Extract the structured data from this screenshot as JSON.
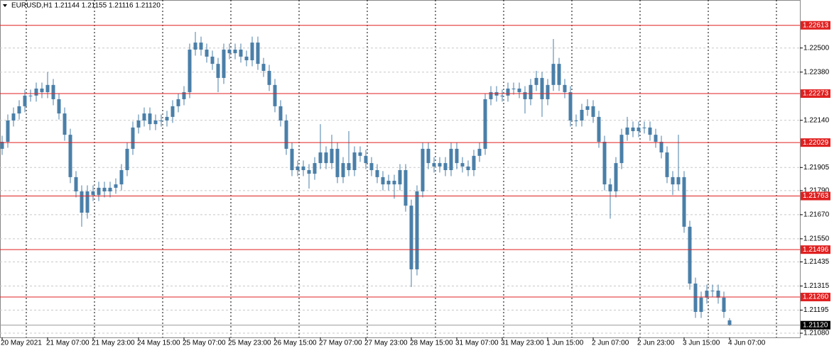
{
  "chart_data": {
    "type": "candlestick",
    "header": "EURUSD,H1  1.21144 1.21155 1.21116 1.21120",
    "color": "#4a7fa8",
    "level_color": "#e02020",
    "categories": [
      "20 May 2021",
      null,
      null,
      null,
      null,
      null,
      null,
      null,
      "21 May 07:00",
      null,
      null,
      null,
      null,
      null,
      null,
      null,
      "21 May 23:00",
      null,
      null,
      null,
      null,
      null,
      null,
      null,
      "24 May 15:00",
      null,
      null,
      null,
      null,
      null,
      null,
      null,
      "25 May 07:00",
      null,
      null,
      null,
      null,
      null,
      null,
      null,
      "25 May 23:00",
      null,
      null,
      null,
      null,
      null,
      null,
      null,
      "26 May 15:00",
      null,
      null,
      null,
      null,
      null,
      null,
      null,
      "27 May 07:00",
      null,
      null,
      null,
      null,
      null,
      null,
      null,
      "27 May 23:00",
      null,
      null,
      null,
      null,
      null,
      null,
      null,
      "28 May 15:00",
      null,
      null,
      null,
      null,
      null,
      null,
      null,
      "31 May 07:00",
      null,
      null,
      null,
      null,
      null,
      null,
      null,
      "31 May 23:00",
      null,
      null,
      null,
      null,
      null,
      null,
      null,
      "1 Jun 15:00",
      null,
      null,
      null,
      null,
      null,
      null,
      null,
      "2 Jun 07:00",
      null,
      null,
      null,
      null,
      null,
      null,
      null,
      "2 Jun 23:00",
      null,
      null,
      null,
      null,
      null,
      null,
      null,
      "3 Jun 15:00",
      null,
      null,
      null,
      null,
      null,
      null,
      null,
      "4 Jun 07:00"
    ],
    "open": [
      1.21998,
      1.22033,
      1.22139,
      1.22174,
      1.2221,
      1.22263,
      1.22263,
      1.22298,
      1.2228,
      1.22316,
      1.22245,
      1.22174,
      1.22068,
      1.21857,
      1.21786,
      1.2168,
      1.21786,
      1.21768,
      1.21804,
      1.21786,
      1.21804,
      1.21821,
      1.21892,
      1.21998,
      1.22104,
      1.22139,
      1.22174,
      1.22121,
      1.22139,
      1.22139,
      1.22157,
      1.2221,
      1.22245,
      1.2228,
      1.22492,
      1.22527,
      1.22492,
      1.22457,
      1.22421,
      1.22351,
      1.22492,
      1.22474,
      1.22492,
      1.22457,
      1.22439,
      1.22527,
      1.22421,
      1.22386,
      1.22316,
      1.2221,
      1.22139,
      1.21998,
      1.21892,
      1.2191,
      1.21892,
      1.21874,
      1.21927,
      1.2198,
      1.21927,
      1.21998,
      1.21857,
      1.21927,
      1.21892,
      1.2198,
      1.21963,
      1.21927,
      1.21892,
      1.21857,
      1.21821,
      1.21839,
      1.21821,
      1.21892,
      1.21715,
      1.21398,
      1.21786,
      1.21998,
      1.21927,
      1.2191,
      1.21927,
      1.21892,
      1.21998,
      1.21927,
      1.2191,
      1.21892,
      1.21963,
      1.21998,
      1.22245,
      1.2228,
      1.22263,
      1.22263,
      1.22298,
      1.22298,
      1.2228,
      1.22245,
      1.22316,
      1.22351,
      1.22245,
      1.22316,
      1.22421,
      1.22316,
      1.2228,
      1.22139,
      1.22139,
      1.22192,
      1.2221,
      1.22157,
      1.22033,
      1.21821,
      1.21786,
      1.21927,
      1.22068,
      1.22104,
      1.22086,
      1.22104,
      1.22104,
      1.22068,
      1.22033,
      1.2198,
      1.21857,
      1.21821,
      1.21857,
      1.2161,
      1.21327,
      1.21186,
      1.21257,
      1.21292,
      1.21292,
      1.21257,
      1.21144
    ],
    "high": [
      1.22063,
      1.22169,
      1.22204,
      1.2224,
      1.22293,
      1.22293,
      1.22328,
      1.22328,
      1.2238,
      1.22346,
      1.22275,
      1.22204,
      1.22098,
      1.21887,
      1.21816,
      1.21816,
      1.21816,
      1.21834,
      1.21834,
      1.21834,
      1.21851,
      1.21922,
      1.22028,
      1.22134,
      1.22169,
      1.22204,
      1.22204,
      1.22169,
      1.22169,
      1.22187,
      1.2224,
      1.22275,
      1.2231,
      1.22522,
      1.2258,
      1.22557,
      1.22522,
      1.22487,
      1.22451,
      1.22522,
      1.22522,
      1.22522,
      1.22522,
      1.22487,
      1.22557,
      1.22557,
      1.22451,
      1.22416,
      1.22346,
      1.2224,
      1.22169,
      1.22028,
      1.2194,
      1.2194,
      1.21922,
      1.21957,
      1.22121,
      1.2201,
      1.22068,
      1.22028,
      1.21957,
      1.22086,
      1.2201,
      1.2201,
      1.21993,
      1.21957,
      1.21922,
      1.21887,
      1.21869,
      1.21869,
      1.21922,
      1.21922,
      1.21745,
      1.21816,
      1.22028,
      1.22028,
      1.21957,
      1.21957,
      1.21957,
      1.22028,
      1.22028,
      1.21957,
      1.2194,
      1.21993,
      1.22028,
      1.22275,
      1.2231,
      1.2231,
      1.22293,
      1.22328,
      1.22328,
      1.22328,
      1.2231,
      1.22346,
      1.22386,
      1.22381,
      1.22346,
      1.22545,
      1.22451,
      1.22346,
      1.2231,
      1.22169,
      1.22222,
      1.22245,
      1.2224,
      1.22187,
      1.22063,
      1.21851,
      1.21957,
      1.22098,
      1.22157,
      1.22134,
      1.22134,
      1.22134,
      1.22134,
      1.22098,
      1.22063,
      1.2201,
      1.21887,
      1.22068,
      1.21887,
      1.2164,
      1.21357,
      1.21287,
      1.21322,
      1.21322,
      1.21322,
      1.21287,
      1.21155
    ],
    "low": [
      1.21968,
      1.22003,
      1.22109,
      1.22144,
      1.2218,
      1.22233,
      1.22233,
      1.2225,
      1.2225,
      1.22215,
      1.22144,
      1.22038,
      1.21827,
      1.21756,
      1.2161,
      1.2165,
      1.21738,
      1.21738,
      1.21756,
      1.21756,
      1.21774,
      1.21791,
      1.21862,
      1.21968,
      1.22074,
      1.22109,
      1.22091,
      1.22091,
      1.22109,
      1.22109,
      1.22127,
      1.2218,
      1.22215,
      1.2225,
      1.22462,
      1.22462,
      1.22427,
      1.22391,
      1.2228,
      1.22321,
      1.22444,
      1.22444,
      1.22427,
      1.22409,
      1.22409,
      1.22391,
      1.22356,
      1.22286,
      1.2218,
      1.22109,
      1.21968,
      1.21862,
      1.21862,
      1.21862,
      1.218,
      1.21844,
      1.21897,
      1.21897,
      1.21897,
      1.21827,
      1.21827,
      1.21862,
      1.21862,
      1.21933,
      1.21897,
      1.21862,
      1.21827,
      1.21791,
      1.21791,
      1.2175,
      1.21791,
      1.21685,
      1.2131,
      1.21368,
      1.21756,
      1.21897,
      1.2188,
      1.2188,
      1.21862,
      1.21862,
      1.21897,
      1.2188,
      1.21862,
      1.21862,
      1.21933,
      1.21968,
      1.22215,
      1.22233,
      1.22233,
      1.22233,
      1.22268,
      1.2225,
      1.22174,
      1.22215,
      1.22286,
      1.22157,
      1.22215,
      1.22286,
      1.22286,
      1.2225,
      1.22109,
      1.22109,
      1.22109,
      1.22162,
      1.22127,
      1.22003,
      1.21791,
      1.2165,
      1.21756,
      1.21897,
      1.22038,
      1.22056,
      1.22056,
      1.22074,
      1.22038,
      1.22003,
      1.2195,
      1.21827,
      1.21768,
      1.21791,
      1.2158,
      1.21297,
      1.21156,
      1.21156,
      1.21227,
      1.21262,
      1.21227,
      1.21156,
      1.21116
    ],
    "close": [
      1.22033,
      1.22139,
      1.22174,
      1.2221,
      1.22263,
      1.22263,
      1.22298,
      1.2228,
      1.22316,
      1.22245,
      1.22174,
      1.22068,
      1.21857,
      1.21786,
      1.2168,
      1.21786,
      1.21768,
      1.21804,
      1.21786,
      1.21804,
      1.21821,
      1.21892,
      1.21998,
      1.22104,
      1.22139,
      1.22174,
      1.22121,
      1.22139,
      1.22139,
      1.22157,
      1.2221,
      1.22245,
      1.2228,
      1.22492,
      1.22527,
      1.22492,
      1.22457,
      1.22421,
      1.22351,
      1.22492,
      1.22474,
      1.22492,
      1.22457,
      1.22439,
      1.22527,
      1.22421,
      1.22386,
      1.22316,
      1.2221,
      1.22139,
      1.21998,
      1.21892,
      1.2191,
      1.21892,
      1.21874,
      1.21927,
      1.2198,
      1.21927,
      1.21998,
      1.21857,
      1.21927,
      1.21892,
      1.2198,
      1.21963,
      1.21927,
      1.21892,
      1.21857,
      1.21821,
      1.21839,
      1.21821,
      1.21892,
      1.21715,
      1.21398,
      1.21786,
      1.21998,
      1.21927,
      1.2191,
      1.21927,
      1.21892,
      1.21998,
      1.21927,
      1.2191,
      1.21892,
      1.21963,
      1.21998,
      1.22245,
      1.2228,
      1.22263,
      1.22263,
      1.22298,
      1.22298,
      1.2228,
      1.22245,
      1.22316,
      1.22351,
      1.22245,
      1.22316,
      1.22421,
      1.22316,
      1.2228,
      1.22139,
      1.22139,
      1.22192,
      1.2221,
      1.22157,
      1.22033,
      1.21821,
      1.21786,
      1.21927,
      1.22068,
      1.22104,
      1.22086,
      1.22104,
      1.22104,
      1.22068,
      1.22033,
      1.2198,
      1.21857,
      1.21821,
      1.21857,
      1.2161,
      1.21327,
      1.21186,
      1.21257,
      1.21292,
      1.21292,
      1.21257,
      1.21186,
      1.2112
    ],
    "ylim": [
      1.21059,
      1.22739
    ],
    "yticks": [
      {
        "value": 1.225,
        "label": "1.22500"
      },
      {
        "value": 1.2238,
        "label": "1.22380"
      },
      {
        "value": 1.2214,
        "label": "1.22140"
      },
      1.21905,
      {
        "value": 1.2179,
        "label": "1.21790"
      },
      {
        "value": 1.2167,
        "label": "1.21670"
      },
      {
        "value": 1.2155,
        "label": "1.21550"
      },
      1.21435,
      1.21315,
      1.21195,
      {
        "value": 1.2108,
        "label": "1.21080"
      }
    ],
    "grid": true,
    "levels": [
      1.22613,
      1.22273,
      1.22029,
      1.21763,
      1.21496,
      {
        "value": 1.2126,
        "label": "1.21260"
      }
    ],
    "current_price": {
      "value": 1.2112,
      "label": "1.21120"
    }
  }
}
